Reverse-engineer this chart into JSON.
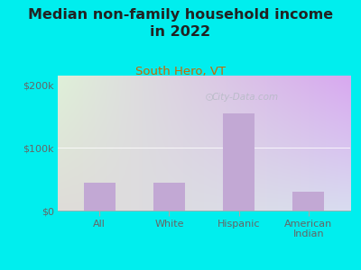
{
  "title": "Median non-family household income\nin 2022",
  "subtitle": "South Hero, VT",
  "categories": [
    "All",
    "White",
    "Hispanic",
    "American\nIndian"
  ],
  "values": [
    45000,
    45000,
    155000,
    30000
  ],
  "bar_color": "#c2a8d4",
  "background_outer": "#00EEEE",
  "background_inner_topleft": "#dff0d8",
  "background_inner_bottomright": "#d8e8f0",
  "title_color": "#222222",
  "subtitle_color": "#cc6600",
  "tick_label_color": "#666666",
  "ylabel_ticks": [
    0,
    100000,
    200000
  ],
  "ylabel_labels": [
    "$0",
    "$100k",
    "$200k"
  ],
  "ylim": [
    0,
    215000
  ],
  "watermark": "City-Data.com",
  "title_fontsize": 11.5,
  "subtitle_fontsize": 9.5,
  "tick_fontsize": 8
}
